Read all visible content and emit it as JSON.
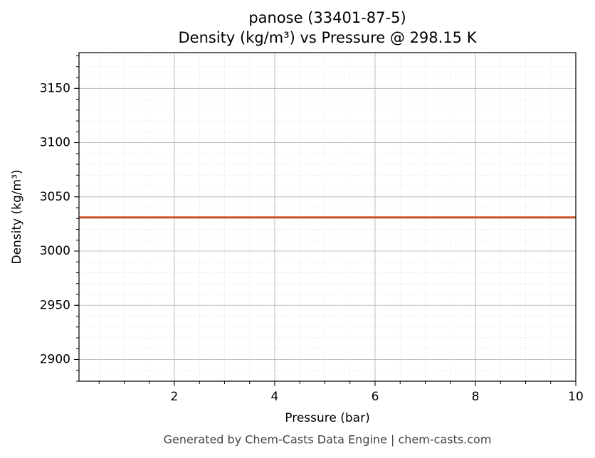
{
  "chart_data": {
    "type": "line",
    "title": "panose (33401-87-5)",
    "subtitle": "Density (kg/m³) vs Pressure @ 298.15 K",
    "xlabel": "Pressure (bar)",
    "ylabel": "Density (kg/m³)",
    "footer": "Generated by Chem-Casts Data Engine | chem-casts.com",
    "x": [
      0.1,
      10
    ],
    "series": [
      {
        "name": "Density",
        "color": "#c8532a",
        "values": [
          3031,
          3031
        ]
      }
    ],
    "xlim": [
      0.1,
      10
    ],
    "xticks": [
      2,
      4,
      6,
      8,
      10
    ],
    "ylim": [
      2880,
      3183
    ],
    "yticks": [
      2900,
      2950,
      3000,
      3050,
      3100,
      3150
    ],
    "xminorticks": [
      0.5,
      1,
      1.5,
      2,
      2.5,
      3,
      3.5,
      4,
      4.5,
      5,
      5.5,
      6,
      6.5,
      7,
      7.5,
      8,
      8.5,
      9,
      9.5
    ],
    "yminorticks": [
      2880,
      2890,
      2900,
      2910,
      2920,
      2930,
      2940,
      2950,
      2960,
      2970,
      2980,
      2990,
      3000,
      3010,
      3020,
      3030,
      3040,
      3050,
      3060,
      3070,
      3080,
      3090,
      3100,
      3110,
      3120,
      3130,
      3140,
      3150,
      3160,
      3170,
      3180
    ],
    "grid": true
  }
}
